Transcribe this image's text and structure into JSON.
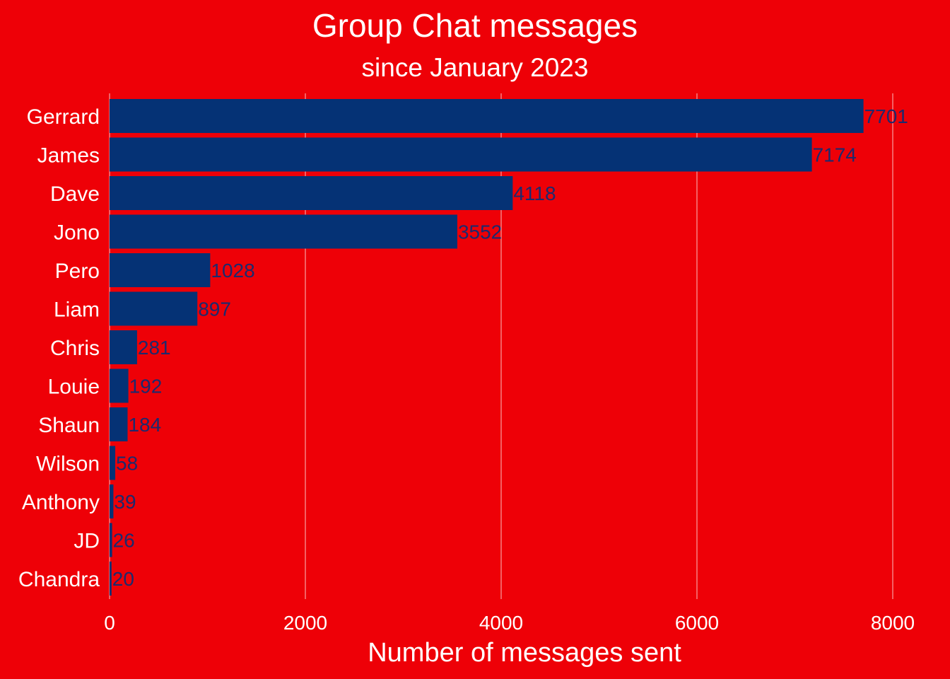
{
  "colors": {
    "background": "#ee0007",
    "bar": "#053275",
    "value_label": "#1c2a6e",
    "text": "#ffffff",
    "grid": "#ffffff"
  },
  "chart_data": {
    "type": "bar",
    "orientation": "horizontal",
    "title": "Group Chat messages",
    "subtitle": "since January 2023",
    "xlabel": "Number of messages sent",
    "ylabel": "",
    "xlim": [
      0,
      8000
    ],
    "x_ticks": [
      "0",
      "2000",
      "4000",
      "6000",
      "8000"
    ],
    "grid": "vertical major gridlines",
    "legend": "none",
    "categories": [
      "Gerrard",
      "James",
      "Dave",
      "Jono",
      "Pero",
      "Liam",
      "Chris",
      "Louie",
      "Shaun",
      "Wilson",
      "Anthony",
      "JD",
      "Chandra"
    ],
    "values": [
      7701,
      7174,
      4118,
      3552,
      1028,
      897,
      281,
      192,
      184,
      58,
      39,
      26,
      20
    ],
    "value_labels": [
      "7701",
      "7174",
      "4118",
      "3552",
      "1028",
      "897",
      "281",
      "192",
      "184",
      "58",
      "39",
      "26",
      "20"
    ]
  }
}
